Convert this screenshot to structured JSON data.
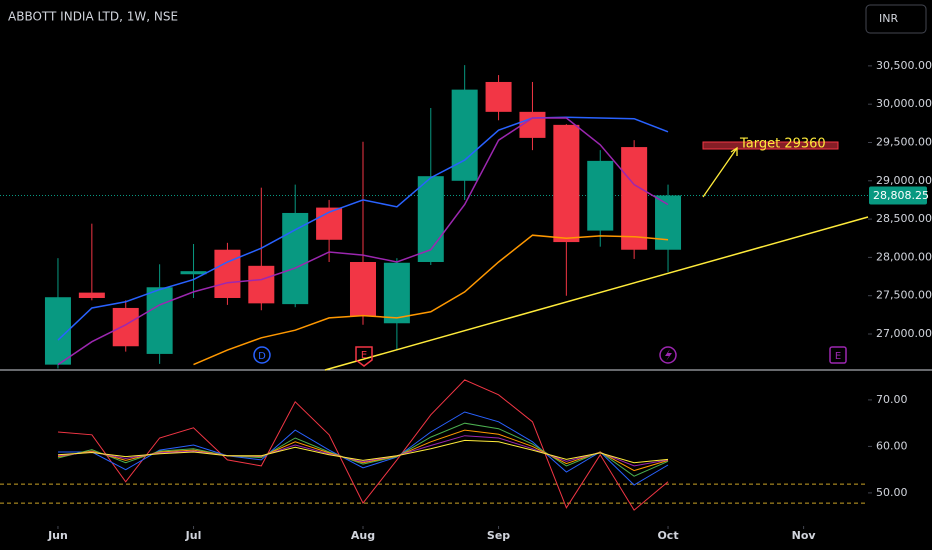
{
  "header": {
    "title": "ABBOTT INDIA LTD, 1W, NSE",
    "currency": "INR"
  },
  "chart_data": [
    {
      "type": "candlestick",
      "open": [
        26600,
        27540,
        27340,
        26740,
        27780,
        28100,
        27890,
        27390,
        28650,
        27940,
        27140,
        27940,
        29000,
        30290,
        29900,
        29730,
        28350,
        29440,
        28100
      ],
      "high": [
        27990,
        28440,
        27440,
        27910,
        28175,
        28190,
        28910,
        28950,
        28750,
        29510,
        27990,
        29950,
        30510,
        30380,
        30290,
        29740,
        29400,
        29530,
        28950
      ],
      "low": [
        26550,
        27440,
        26770,
        26610,
        27470,
        27380,
        27310,
        27350,
        27940,
        27120,
        26790,
        27900,
        28750,
        29790,
        29400,
        27500,
        28140,
        27980,
        27810
      ],
      "close": [
        27480,
        27470,
        26840,
        27610,
        27820,
        27470,
        27400,
        28580,
        28230,
        27230,
        27930,
        29060,
        30190,
        29900,
        29560,
        28200,
        29260,
        28100,
        28808.25
      ],
      "up_color": "#089981",
      "down_color": "#f23645",
      "series": [
        {
          "color": "#2962ff",
          "values": [
            26920,
            27340,
            27420,
            27580,
            27710,
            27940,
            28120,
            28360,
            28590,
            28750,
            28660,
            29040,
            29270,
            29660,
            29820,
            29830,
            29820,
            29810,
            29640
          ]
        },
        {
          "color": "#9c27b0",
          "values": [
            26600,
            26900,
            27120,
            27380,
            27550,
            27670,
            27710,
            27860,
            28070,
            28030,
            27940,
            28100,
            28690,
            29530,
            29820,
            29820,
            29470,
            28950,
            28690
          ]
        },
        {
          "color": "#ff9800",
          "values": [
            null,
            null,
            null,
            null,
            26600,
            26790,
            26950,
            27050,
            27210,
            27240,
            27210,
            27290,
            27550,
            27940,
            28290,
            28250,
            28280,
            28270,
            28230
          ]
        }
      ],
      "xlim": [
        -1.71,
        23.9
      ],
      "ylim": [
        26530,
        31360
      ],
      "yticks": [
        {
          "value": 27000,
          "label": "27,000.00"
        },
        {
          "value": 27500,
          "label": "27,500.00"
        },
        {
          "value": 28000,
          "label": "28,000.00"
        },
        {
          "value": 28500,
          "label": "28,500.00"
        },
        {
          "value": 29000,
          "label": "29,000.00"
        },
        {
          "value": 29500,
          "label": "29,500.00"
        },
        {
          "value": 30000,
          "label": "30,000.00"
        },
        {
          "value": 30500,
          "label": "30,500.00"
        }
      ],
      "last_price": {
        "value": 28808.25,
        "label": "28,808.25"
      },
      "annotations": [
        "Target 29360"
      ],
      "events": [
        "D",
        "E",
        "E"
      ]
    },
    {
      "type": "line",
      "series": [
        {
          "color": "#f23645",
          "values": [
            63.1,
            62.5,
            52.4,
            61.8,
            64.0,
            57.1,
            55.8,
            69.6,
            62.5,
            47.8,
            57.1,
            66.8,
            74.3,
            71.1,
            65.3,
            46.8,
            58.2,
            46.3,
            52.4
          ]
        },
        {
          "color": "#2962ff",
          "values": [
            58.8,
            58.8,
            55.0,
            59.2,
            60.3,
            58.0,
            57.1,
            63.5,
            59.2,
            55.4,
            57.7,
            63.1,
            67.4,
            65.3,
            61.0,
            54.5,
            58.8,
            51.7,
            56.0
          ]
        },
        {
          "color": "#4caf50",
          "values": [
            57.5,
            59.3,
            56.5,
            59.0,
            59.5,
            58.0,
            57.6,
            61.8,
            58.8,
            56.2,
            57.8,
            62.0,
            65.0,
            63.8,
            60.5,
            55.8,
            58.8,
            53.6,
            56.8
          ]
        },
        {
          "color": "#ff9800",
          "values": [
            57.8,
            59.0,
            57.0,
            58.8,
            59.2,
            58.0,
            57.8,
            61.0,
            58.6,
            56.5,
            57.9,
            61.0,
            63.5,
            62.6,
            60.0,
            56.3,
            58.8,
            54.8,
            57.0
          ]
        },
        {
          "color": "#9c27b0",
          "values": [
            58.0,
            58.8,
            57.4,
            58.6,
            59.0,
            58.0,
            57.9,
            60.3,
            58.4,
            56.7,
            58.0,
            60.2,
            62.3,
            61.8,
            59.5,
            56.8,
            58.7,
            55.8,
            57.1
          ]
        },
        {
          "color": "#ffeb3b",
          "values": [
            58.2,
            58.7,
            57.8,
            58.4,
            58.8,
            58.0,
            58.0,
            59.8,
            58.2,
            57.0,
            58.0,
            59.5,
            61.3,
            61.0,
            59.2,
            57.2,
            58.6,
            56.5,
            57.2
          ]
        }
      ],
      "levels": [
        51.9,
        47.8
      ],
      "xlim": [
        -1.71,
        23.9
      ],
      "ylim": [
        43.1,
        76.0
      ],
      "yticks": [
        {
          "value": 50,
          "label": "50.00"
        },
        {
          "value": 60,
          "label": "60.00"
        },
        {
          "value": 70,
          "label": "70.00"
        }
      ],
      "xticks": [
        {
          "value": 0,
          "label": "Jun"
        },
        {
          "value": 4,
          "label": "Jul"
        },
        {
          "value": 9,
          "label": "Aug"
        },
        {
          "value": 13,
          "label": "Sep"
        },
        {
          "value": 18,
          "label": "Oct"
        },
        {
          "value": 22,
          "label": "Nov"
        }
      ]
    }
  ]
}
